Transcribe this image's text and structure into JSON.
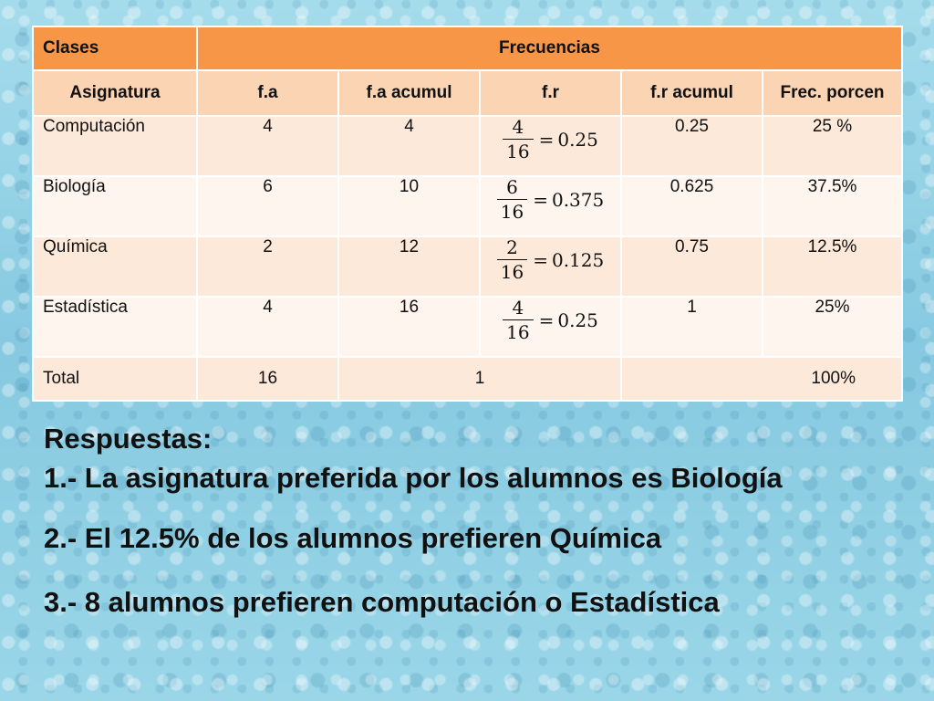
{
  "table": {
    "header1": {
      "clases": "Clases",
      "frecuencias": "Frecuencias"
    },
    "header2": [
      "Asignatura",
      "f.a",
      "f.a  acumul",
      "f.r",
      "f.r  acumul",
      "Frec. porcen"
    ],
    "rows": [
      {
        "asignatura": "Computación",
        "fa": "4",
        "fa_acumul": "4",
        "fr_num": "4",
        "fr_den": "16",
        "fr_eq": "=",
        "fr_val": "0.25",
        "fr_acumul": "0.25",
        "porcen": "25 %"
      },
      {
        "asignatura": "Biología",
        "fa": "6",
        "fa_acumul": "10",
        "fr_num": "6",
        "fr_den": "16",
        "fr_eq": "=",
        "fr_val": "0.375",
        "fr_acumul": "0.625",
        "porcen": "37.5%"
      },
      {
        "asignatura": "Química",
        "fa": "2",
        "fa_acumul": "12",
        "fr_num": "2",
        "fr_den": "16",
        "fr_eq": "=",
        "fr_val": "0.125",
        "fr_acumul": "0.75",
        "porcen": "12.5%"
      },
      {
        "asignatura": "Estadística",
        "fa": "4",
        "fa_acumul": "16",
        "fr_num": "4",
        "fr_den": "16",
        "fr_eq": "=",
        "fr_val": "0.25",
        "fr_acumul": "1",
        "porcen": "25%"
      }
    ],
    "total": {
      "label": "Total",
      "fa": "16",
      "fr": "1",
      "porcen": "100%"
    }
  },
  "answers": {
    "heading": "Respuestas:",
    "items": [
      "1.- La asignatura preferida por los alumnos es Biología",
      "2.- El 12.5% de los alumnos prefieren Química",
      "3.- 8 alumnos prefieren computación o Estadística"
    ]
  },
  "colors": {
    "header1_bg": "#f79646",
    "header2_bg": "#fbd4b4",
    "row_odd_bg": "#fde9d9",
    "row_even_bg": "#fff5ef",
    "background": "#8fd0e4"
  }
}
